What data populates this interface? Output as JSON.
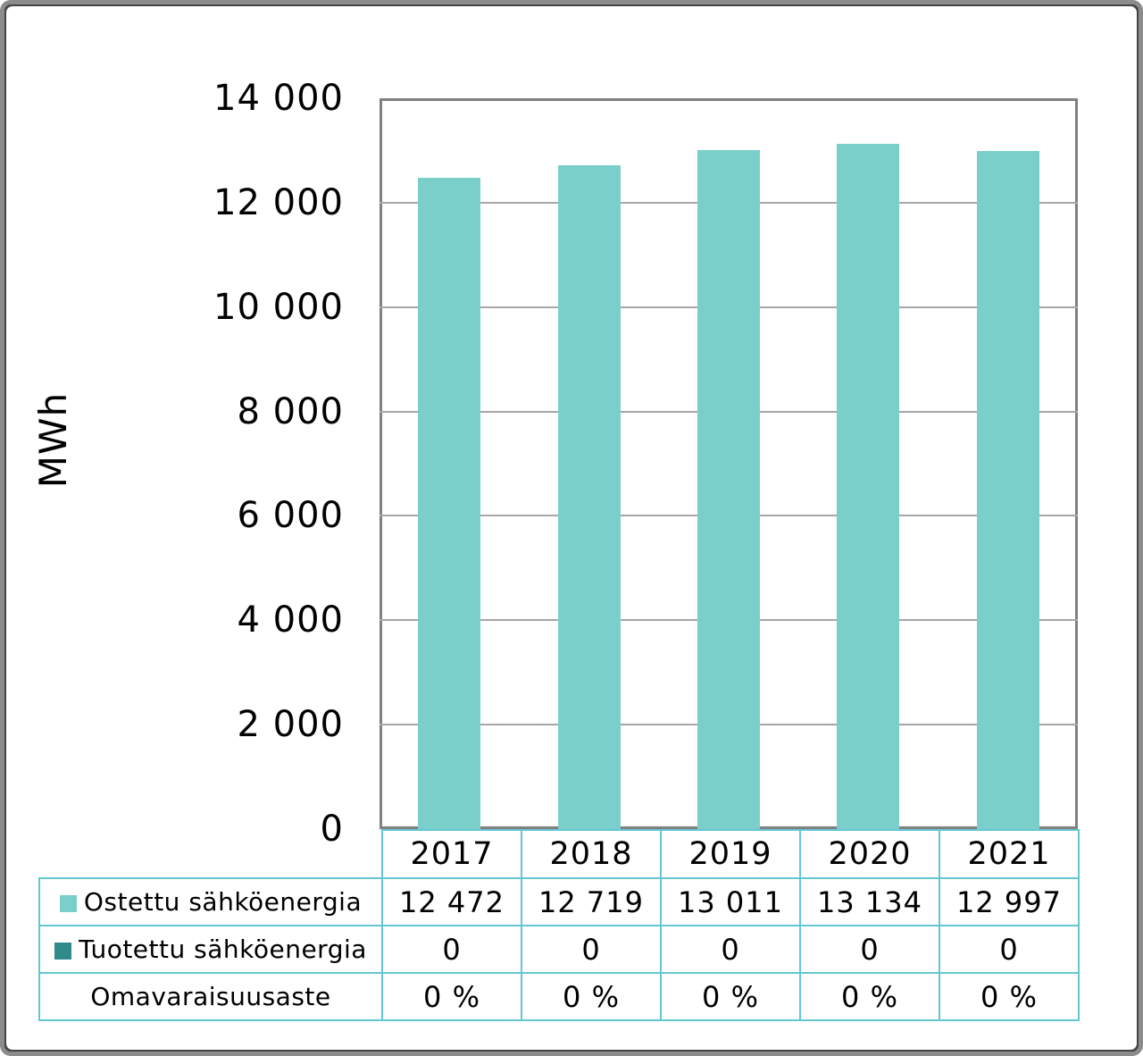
{
  "frame": {
    "background": "#ffffff",
    "outer_border_color": "#454545",
    "inner_border_color": "#8c8c8c"
  },
  "chart_data": {
    "type": "bar",
    "title": "",
    "xlabel": "",
    "ylabel": "MWh",
    "categories": [
      "2017",
      "2018",
      "2019",
      "2020",
      "2021"
    ],
    "series": [
      {
        "name": "Ostettu sähköenergia",
        "values": [
          12472,
          12719,
          13011,
          13134,
          12997
        ],
        "color": "#7BCFCB"
      },
      {
        "name": "Tuotettu sähköenergia",
        "values": [
          0,
          0,
          0,
          0,
          0
        ],
        "color": "#2E8B89"
      }
    ],
    "ylim": [
      0,
      14000
    ],
    "ytick_step": 2000,
    "ytick_labels": [
      "0",
      "2 000",
      "4 000",
      "6 000",
      "8 000",
      "10 000",
      "12 000",
      "14 000"
    ],
    "grid": true,
    "gridline_color": "#A6A6A6",
    "plot_border_color": "#808080",
    "legend_position": "data table below chart (swatches in row labels)"
  },
  "table": {
    "border_color": "#62C7D3",
    "header": [
      "2017",
      "2018",
      "2019",
      "2020",
      "2021"
    ],
    "rows": [
      {
        "label": "Ostettu sähköenergia",
        "swatch_color": "#7BCFCB",
        "cells": [
          "12 472",
          "12 719",
          "13 011",
          "13 134",
          "12 997"
        ]
      },
      {
        "label": "Tuotettu sähköenergia",
        "swatch_color": "#2E8B89",
        "cells": [
          "0",
          "0",
          "0",
          "0",
          "0"
        ]
      },
      {
        "label": "Omavaraisuusaste",
        "swatch_color": null,
        "cells": [
          "0 %",
          "0 %",
          "0 %",
          "0 %",
          "0 %"
        ]
      }
    ]
  }
}
